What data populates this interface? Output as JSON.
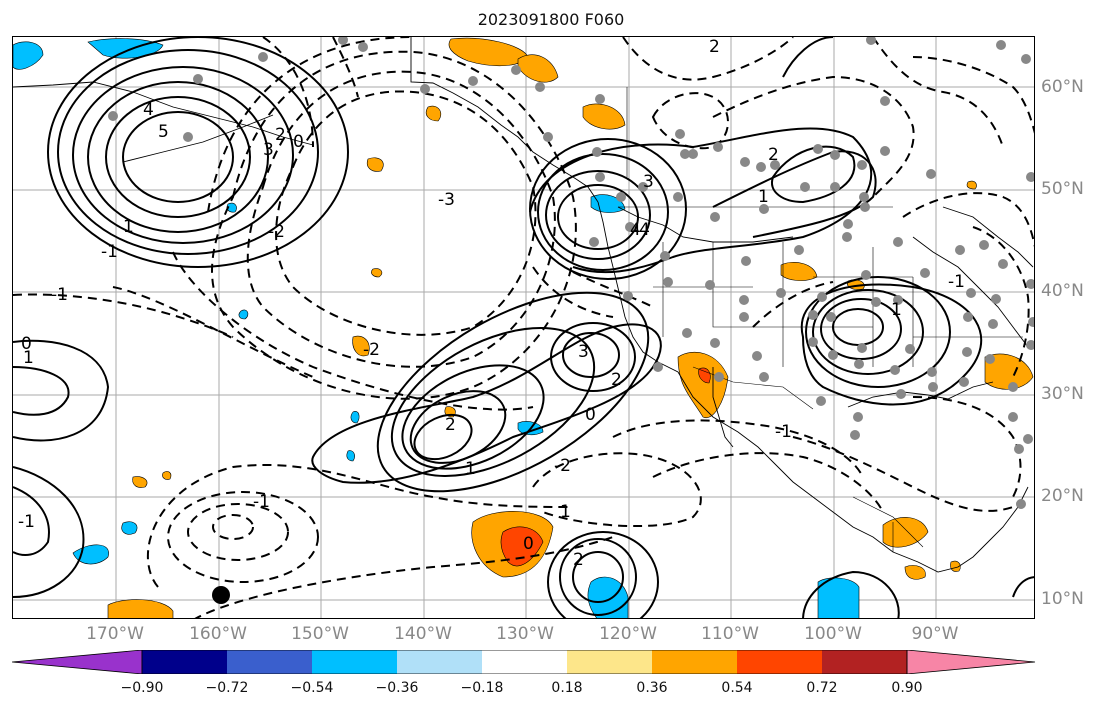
{
  "title": "2023091800 F060",
  "map": {
    "lon_labels": [
      "170°W",
      "160°W",
      "150°W",
      "140°W",
      "130°W",
      "120°W",
      "110°W",
      "100°W",
      "90°W"
    ],
    "lat_labels": [
      "60°N",
      "50°N",
      "40°N",
      "30°N",
      "20°N",
      "10°N"
    ],
    "contour_labels": [
      "5",
      "4",
      "3",
      "2",
      "1",
      "0",
      "-1",
      "-2",
      "-3",
      "-4",
      "-2",
      "-1",
      "0",
      "1",
      "2",
      "3",
      "2",
      "1",
      "0",
      "-1",
      "-2",
      "0",
      "1",
      "2",
      "3",
      "4",
      "2",
      "1",
      "-1",
      "1",
      "2",
      "-1",
      "-1"
    ]
  },
  "colorbar": {
    "ticks": [
      "−0.90",
      "−0.72",
      "−0.54",
      "−0.36",
      "−0.18",
      "0.18",
      "0.36",
      "0.54",
      "0.72",
      "0.90"
    ],
    "colors": [
      "#9932cc",
      "#00008b",
      "#3a5fcd",
      "#00bfff",
      "#b0e0f8",
      "#ffffff",
      "#fde68a",
      "#ffa500",
      "#ff4500",
      "#b22222",
      "#f785a6"
    ]
  }
}
